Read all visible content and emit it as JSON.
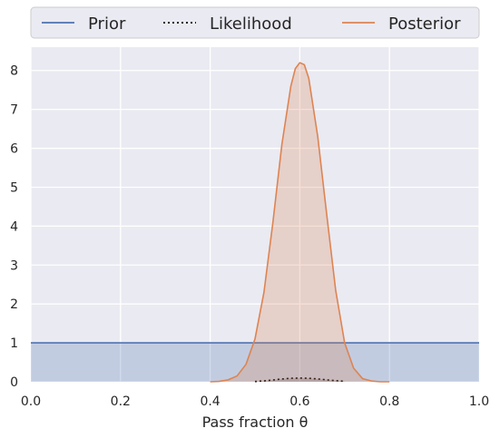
{
  "chart_data": {
    "type": "line",
    "xlabel": "Pass fraction θ",
    "ylabel": "",
    "xlim": [
      0.0,
      1.0
    ],
    "ylim": [
      0.0,
      8.6
    ],
    "grid": true,
    "legend_position": "top",
    "x_ticks": [
      "0.0",
      "0.2",
      "0.4",
      "0.6",
      "0.8",
      "1.0"
    ],
    "y_ticks": [
      "0",
      "1",
      "2",
      "3",
      "4",
      "5",
      "6",
      "7",
      "8"
    ],
    "x_tick_values": [
      0.0,
      0.2,
      0.4,
      0.6,
      0.8,
      1.0
    ],
    "y_tick_values": [
      0,
      1,
      2,
      3,
      4,
      5,
      6,
      7,
      8
    ],
    "colors": {
      "background": "#eaeaf2",
      "grid": "#ffffff",
      "prior": "#4c72b0",
      "likelihood": "#000000",
      "posterior": "#dd8452"
    },
    "series": [
      {
        "name": "Prior",
        "style": "solid",
        "filled": true,
        "x": [
          0.0,
          1.0
        ],
        "y": [
          1.0,
          1.0
        ]
      },
      {
        "name": "Likelihood",
        "style": "dotted",
        "filled": true,
        "x": [
          0.5,
          0.52,
          0.54,
          0.56,
          0.58,
          0.6,
          0.62,
          0.64,
          0.66,
          0.68,
          0.7
        ],
        "y": [
          0.008,
          0.022,
          0.046,
          0.072,
          0.09,
          0.095,
          0.09,
          0.073,
          0.05,
          0.028,
          0.013
        ]
      },
      {
        "name": "Posterior",
        "style": "solid",
        "filled": true,
        "x": [
          0.4,
          0.42,
          0.44,
          0.46,
          0.48,
          0.5,
          0.52,
          0.54,
          0.56,
          0.58,
          0.59,
          0.6,
          0.61,
          0.62,
          0.64,
          0.66,
          0.68,
          0.7,
          0.72,
          0.74,
          0.76,
          0.78,
          0.8
        ],
        "y": [
          0.0,
          0.01,
          0.05,
          0.15,
          0.45,
          1.1,
          2.3,
          4.1,
          6.1,
          7.6,
          8.05,
          8.2,
          8.15,
          7.8,
          6.3,
          4.3,
          2.35,
          1.0,
          0.35,
          0.08,
          0.02,
          0.0,
          0.0
        ]
      }
    ]
  }
}
